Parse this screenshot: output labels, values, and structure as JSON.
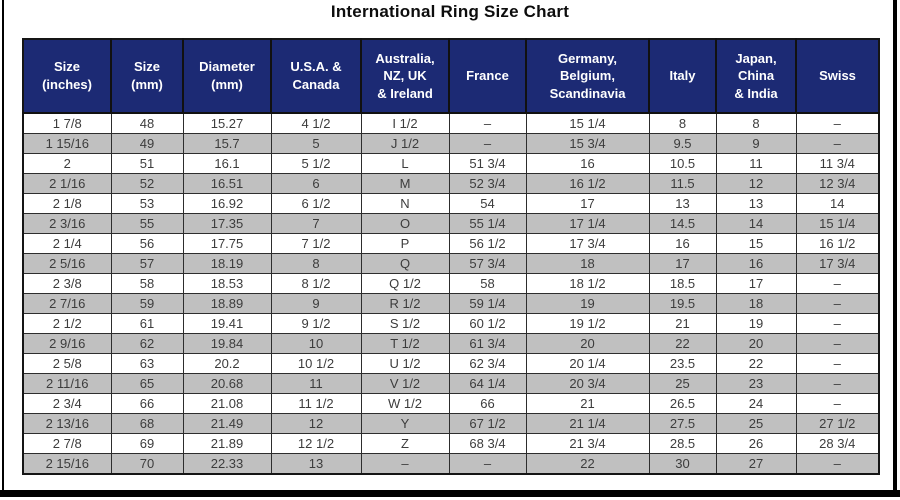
{
  "title": "International Ring Size Chart",
  "colors": {
    "header_bg": "#1c2a74",
    "header_text": "#ffffff",
    "row_stripe_gray": "#c0c0c0",
    "row_white": "#ffffff",
    "frame_border": "#000000",
    "cell_text": "#3c3c3c"
  },
  "chart_data": {
    "type": "table",
    "title": "International Ring Size Chart",
    "columns": [
      "Size\n(inches)",
      "Size\n(mm)",
      "Diameter\n(mm)",
      "U.S.A. &\nCanada",
      "Australia,\nNZ, UK\n& Ireland",
      "France",
      "Germany,\nBelgium,\nScandinavia",
      "Italy",
      "Japan,\nChina\n& India",
      "Swiss"
    ],
    "rows": [
      [
        "1 7/8",
        "48",
        "15.27",
        "4 1/2",
        "I 1/2",
        "–",
        "15 1/4",
        "8",
        "8",
        "–"
      ],
      [
        "1 15/16",
        "49",
        "15.7",
        "5",
        "J 1/2",
        "–",
        "15 3/4",
        "9.5",
        "9",
        "–"
      ],
      [
        "2",
        "51",
        "16.1",
        "5 1/2",
        "L",
        "51 3/4",
        "16",
        "10.5",
        "11",
        "11 3/4"
      ],
      [
        "2 1/16",
        "52",
        "16.51",
        "6",
        "M",
        "52 3/4",
        "16 1/2",
        "11.5",
        "12",
        "12 3/4"
      ],
      [
        "2 1/8",
        "53",
        "16.92",
        "6 1/2",
        "N",
        "54",
        "17",
        "13",
        "13",
        "14"
      ],
      [
        "2 3/16",
        "55",
        "17.35",
        "7",
        "O",
        "55 1/4",
        "17 1/4",
        "14.5",
        "14",
        "15 1/4"
      ],
      [
        "2 1/4",
        "56",
        "17.75",
        "7 1/2",
        "P",
        "56 1/2",
        "17 3/4",
        "16",
        "15",
        "16 1/2"
      ],
      [
        "2 5/16",
        "57",
        "18.19",
        "8",
        "Q",
        "57 3/4",
        "18",
        "17",
        "16",
        "17 3/4"
      ],
      [
        "2 3/8",
        "58",
        "18.53",
        "8 1/2",
        "Q 1/2",
        "58",
        "18 1/2",
        "18.5",
        "17",
        "–"
      ],
      [
        "2 7/16",
        "59",
        "18.89",
        "9",
        "R 1/2",
        "59 1/4",
        "19",
        "19.5",
        "18",
        "–"
      ],
      [
        "2 1/2",
        "61",
        "19.41",
        "9 1/2",
        "S 1/2",
        "60 1/2",
        "19 1/2",
        "21",
        "19",
        "–"
      ],
      [
        "2 9/16",
        "62",
        "19.84",
        "10",
        "T 1/2",
        "61 3/4",
        "20",
        "22",
        "20",
        "–"
      ],
      [
        "2 5/8",
        "63",
        "20.2",
        "10 1/2",
        "U 1/2",
        "62 3/4",
        "20 1/4",
        "23.5",
        "22",
        "–"
      ],
      [
        "2 11/16",
        "65",
        "20.68",
        "11",
        "V 1/2",
        "64 1/4",
        "20 3/4",
        "25",
        "23",
        "–"
      ],
      [
        "2 3/4",
        "66",
        "21.08",
        "11 1/2",
        "W 1/2",
        "66",
        "21",
        "26.5",
        "24",
        "–"
      ],
      [
        "2 13/16",
        "68",
        "21.49",
        "12",
        "Y",
        "67 1/2",
        "21 1/4",
        "27.5",
        "25",
        "27 1/2"
      ],
      [
        "2 7/8",
        "69",
        "21.89",
        "12 1/2",
        "Z",
        "68 3/4",
        "21 3/4",
        "28.5",
        "26",
        "28 3/4"
      ],
      [
        "2 15/16",
        "70",
        "22.33",
        "13",
        "–",
        "–",
        "22",
        "30",
        "27",
        "–"
      ]
    ]
  }
}
